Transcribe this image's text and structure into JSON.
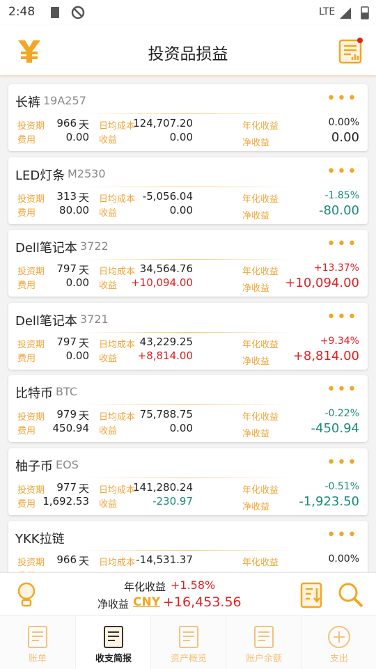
{
  "status": {
    "time": "2:48",
    "network": "LTE"
  },
  "header": {
    "title": "投资品损益"
  },
  "labels": {
    "period": "投资期",
    "day": "天",
    "cost": "日均成本",
    "annual": "年化收益",
    "fee": "费用",
    "income": "收益",
    "net": "净收益"
  },
  "items": [
    {
      "name": "长裤",
      "code": "19A257",
      "period": "966",
      "cost": "124,707.20",
      "annual": "0.00%",
      "fee": "0.00",
      "income": "0.00",
      "net": "0.00"
    },
    {
      "name": "LED灯条",
      "code": "M2530",
      "period": "313",
      "cost": "-5,056.04",
      "annual": "-1.85%",
      "fee": "80.00",
      "income": "0.00",
      "net": "-80.00"
    },
    {
      "name": "Dell笔记本",
      "code": "3722",
      "period": "797",
      "cost": "34,564.76",
      "annual": "+13.37%",
      "fee": "0.00",
      "income": "+10,094.00",
      "net": "+10,094.00"
    },
    {
      "name": "Dell笔记本",
      "code": "3721",
      "period": "797",
      "cost": "43,229.25",
      "annual": "+9.34%",
      "fee": "0.00",
      "income": "+8,814.00",
      "net": "+8,814.00"
    },
    {
      "name": "比特币",
      "code": "BTC",
      "period": "979",
      "cost": "75,788.75",
      "annual": "-0.22%",
      "fee": "450.94",
      "income": "0.00",
      "net": "-450.94"
    },
    {
      "name": "柚子币",
      "code": "EOS",
      "period": "977",
      "cost": "141,280.24",
      "annual": "-0.51%",
      "fee": "1,692.53",
      "income": "-230.97",
      "net": "-1,923.50"
    },
    {
      "name": "YKK拉链",
      "period": "966",
      "cost": "-14,531.37",
      "annual": "0.00%"
    }
  ],
  "summary": {
    "annual_label": "年化收益",
    "annual": "+1.58%",
    "net_label": "净收益",
    "currency": "CNY",
    "net": "+16,453.56"
  },
  "tabs": [
    "账单",
    "收支简报",
    "资产概览",
    "账户余额",
    "支出"
  ],
  "active_tab": 1
}
